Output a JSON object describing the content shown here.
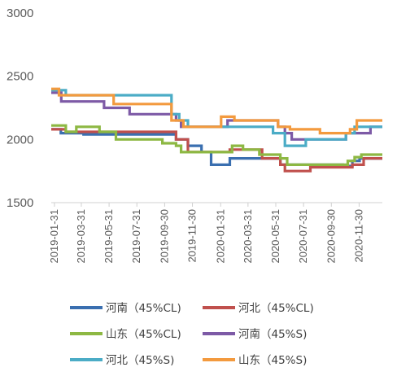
{
  "chart_data": {
    "type": "line",
    "ylim": [
      1500,
      3000
    ],
    "yticks": [
      1500,
      2000,
      2500,
      3000
    ],
    "xlim": [
      "2019-01-24",
      "2021-01-20"
    ],
    "xticks": [
      "2019-01-31",
      "2019-03-31",
      "2019-05-31",
      "2019-07-31",
      "2019-09-30",
      "2019-11-30",
      "2020-01-31",
      "2020-03-31",
      "2020-05-31",
      "2020-07-31",
      "2020-09-30",
      "2020-11-30"
    ],
    "grid": false,
    "legend_position": "bottom",
    "series": [
      {
        "name": "河南（45%CL)",
        "color": "#3a6fb0",
        "points": [
          [
            "2019-01-24",
            2080
          ],
          [
            "2019-02-14",
            2080
          ],
          [
            "2019-02-14",
            2050
          ],
          [
            "2019-04-05",
            2050
          ],
          [
            "2019-04-05",
            2040
          ],
          [
            "2019-10-25",
            2040
          ],
          [
            "2019-10-25",
            2000
          ],
          [
            "2019-11-20",
            2000
          ],
          [
            "2019-11-20",
            1950
          ],
          [
            "2019-12-20",
            1950
          ],
          [
            "2019-12-20",
            1900
          ],
          [
            "2020-01-10",
            1900
          ],
          [
            "2020-01-10",
            1800
          ],
          [
            "2020-02-20",
            1800
          ],
          [
            "2020-02-20",
            1850
          ],
          [
            "2020-06-10",
            1850
          ],
          [
            "2020-06-10",
            1800
          ],
          [
            "2020-10-25",
            1800
          ],
          [
            "2020-10-25",
            1790
          ],
          [
            "2020-11-15",
            1790
          ],
          [
            "2020-11-15",
            1830
          ],
          [
            "2020-12-01",
            1830
          ],
          [
            "2020-12-01",
            1850
          ],
          [
            "2021-01-20",
            1850
          ]
        ]
      },
      {
        "name": "河北（45%CL)",
        "color": "#c0504d",
        "points": [
          [
            "2019-01-24",
            2080
          ],
          [
            "2019-02-25",
            2080
          ],
          [
            "2019-02-25",
            2060
          ],
          [
            "2019-10-25",
            2060
          ],
          [
            "2019-10-25",
            2000
          ],
          [
            "2019-11-20",
            2000
          ],
          [
            "2019-11-20",
            1900
          ],
          [
            "2020-02-20",
            1900
          ],
          [
            "2020-02-20",
            1920
          ],
          [
            "2020-05-01",
            1920
          ],
          [
            "2020-05-01",
            1850
          ],
          [
            "2020-06-10",
            1850
          ],
          [
            "2020-06-10",
            1800
          ],
          [
            "2020-06-20",
            1800
          ],
          [
            "2020-06-20",
            1750
          ],
          [
            "2020-08-15",
            1750
          ],
          [
            "2020-08-15",
            1780
          ],
          [
            "2020-11-15",
            1780
          ],
          [
            "2020-11-15",
            1800
          ],
          [
            "2020-12-10",
            1800
          ],
          [
            "2020-12-10",
            1850
          ],
          [
            "2021-01-20",
            1850
          ]
        ]
      },
      {
        "name": "山东（45%CL)",
        "color": "#8db843",
        "points": [
          [
            "2019-01-24",
            2110
          ],
          [
            "2019-02-25",
            2110
          ],
          [
            "2019-02-25",
            2060
          ],
          [
            "2019-03-20",
            2060
          ],
          [
            "2019-03-20",
            2100
          ],
          [
            "2019-05-10",
            2100
          ],
          [
            "2019-05-10",
            2060
          ],
          [
            "2019-06-15",
            2060
          ],
          [
            "2019-06-15",
            2000
          ],
          [
            "2019-09-25",
            2000
          ],
          [
            "2019-09-25",
            1970
          ],
          [
            "2019-10-25",
            1970
          ],
          [
            "2019-10-25",
            1950
          ],
          [
            "2019-11-05",
            1950
          ],
          [
            "2019-11-05",
            1900
          ],
          [
            "2020-02-25",
            1900
          ],
          [
            "2020-02-25",
            1950
          ],
          [
            "2020-03-20",
            1950
          ],
          [
            "2020-03-20",
            1920
          ],
          [
            "2020-04-25",
            1920
          ],
          [
            "2020-04-25",
            1880
          ],
          [
            "2020-06-10",
            1880
          ],
          [
            "2020-06-10",
            1850
          ],
          [
            "2020-06-25",
            1850
          ],
          [
            "2020-06-25",
            1800
          ],
          [
            "2020-11-05",
            1800
          ],
          [
            "2020-11-05",
            1830
          ],
          [
            "2020-11-20",
            1830
          ],
          [
            "2020-11-20",
            1860
          ],
          [
            "2020-12-05",
            1860
          ],
          [
            "2020-12-05",
            1880
          ],
          [
            "2021-01-20",
            1880
          ]
        ]
      },
      {
        "name": "河南（45%S)",
        "color": "#7d5aa6",
        "points": [
          [
            "2019-01-24",
            2370
          ],
          [
            "2019-02-15",
            2370
          ],
          [
            "2019-02-15",
            2300
          ],
          [
            "2019-05-20",
            2300
          ],
          [
            "2019-05-20",
            2250
          ],
          [
            "2019-07-15",
            2250
          ],
          [
            "2019-07-15",
            2200
          ],
          [
            "2019-10-25",
            2200
          ],
          [
            "2019-10-25",
            2150
          ],
          [
            "2019-11-05",
            2150
          ],
          [
            "2019-11-05",
            2100
          ],
          [
            "2020-02-15",
            2100
          ],
          [
            "2020-02-15",
            2150
          ],
          [
            "2020-06-05",
            2150
          ],
          [
            "2020-06-05",
            2100
          ],
          [
            "2020-06-20",
            2100
          ],
          [
            "2020-06-20",
            2050
          ],
          [
            "2020-07-05",
            2050
          ],
          [
            "2020-07-05",
            2000
          ],
          [
            "2020-11-01",
            2000
          ],
          [
            "2020-11-01",
            2050
          ],
          [
            "2020-12-25",
            2050
          ],
          [
            "2020-12-25",
            2100
          ],
          [
            "2021-01-20",
            2100
          ]
        ]
      },
      {
        "name": "河北（45%S)",
        "color": "#4bacc6",
        "points": [
          [
            "2019-01-24",
            2390
          ],
          [
            "2019-02-25",
            2390
          ],
          [
            "2019-02-25",
            2350
          ],
          [
            "2019-10-15",
            2350
          ],
          [
            "2019-10-15",
            2200
          ],
          [
            "2019-11-01",
            2200
          ],
          [
            "2019-11-01",
            2150
          ],
          [
            "2019-11-20",
            2150
          ],
          [
            "2019-11-20",
            2100
          ],
          [
            "2020-05-25",
            2100
          ],
          [
            "2020-05-25",
            2050
          ],
          [
            "2020-06-20",
            2050
          ],
          [
            "2020-06-20",
            1950
          ],
          [
            "2020-08-05",
            1950
          ],
          [
            "2020-08-05",
            2000
          ],
          [
            "2020-11-01",
            2000
          ],
          [
            "2020-11-01",
            2050
          ],
          [
            "2020-11-20",
            2050
          ],
          [
            "2020-11-20",
            2100
          ],
          [
            "2021-01-20",
            2100
          ]
        ]
      },
      {
        "name": "山东（45%S)",
        "color": "#f39a3e",
        "points": [
          [
            "2019-01-24",
            2400
          ],
          [
            "2019-02-10",
            2400
          ],
          [
            "2019-02-10",
            2350
          ],
          [
            "2019-06-10",
            2350
          ],
          [
            "2019-06-10",
            2280
          ],
          [
            "2019-10-15",
            2280
          ],
          [
            "2019-10-15",
            2150
          ],
          [
            "2019-11-10",
            2150
          ],
          [
            "2019-11-10",
            2100
          ],
          [
            "2020-02-01",
            2100
          ],
          [
            "2020-02-01",
            2180
          ],
          [
            "2020-03-01",
            2180
          ],
          [
            "2020-03-01",
            2150
          ],
          [
            "2020-06-05",
            2150
          ],
          [
            "2020-06-05",
            2100
          ],
          [
            "2020-07-01",
            2100
          ],
          [
            "2020-07-01",
            2080
          ],
          [
            "2020-09-05",
            2080
          ],
          [
            "2020-09-05",
            2050
          ],
          [
            "2020-11-10",
            2050
          ],
          [
            "2020-11-10",
            2080
          ],
          [
            "2020-11-25",
            2080
          ],
          [
            "2020-11-25",
            2150
          ],
          [
            "2021-01-20",
            2150
          ]
        ]
      }
    ]
  }
}
